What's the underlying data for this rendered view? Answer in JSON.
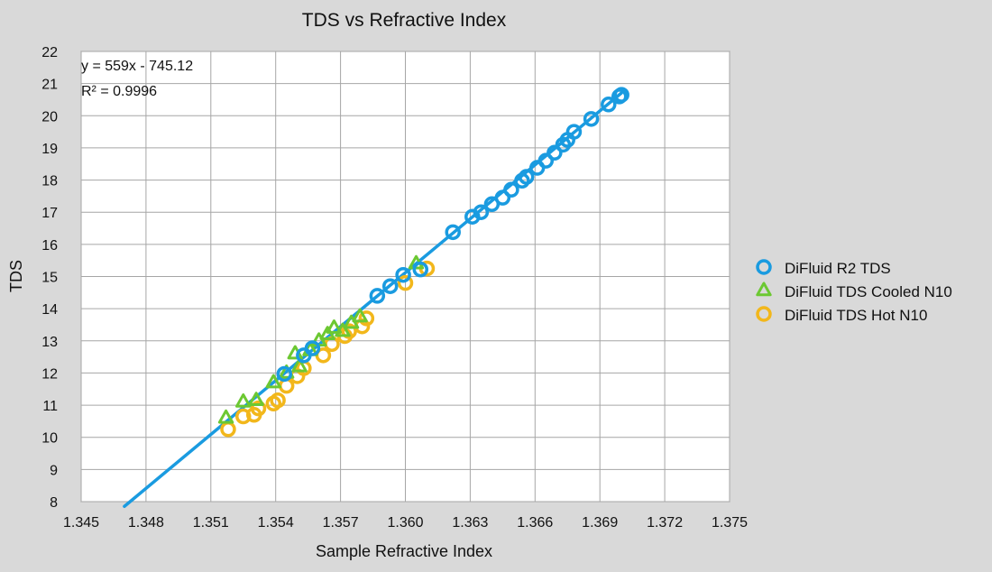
{
  "chart_data": {
    "type": "scatter",
    "title": "TDS vs Refractive Index",
    "xlabel": "Sample Refractive Index",
    "ylabel": "TDS",
    "xlim": [
      1.345,
      1.375
    ],
    "ylim": [
      8,
      22
    ],
    "x_ticks": [
      1.345,
      1.348,
      1.351,
      1.354,
      1.357,
      1.36,
      1.363,
      1.366,
      1.369,
      1.372,
      1.375
    ],
    "x_tick_labels": [
      "1.345",
      "1.348",
      "1.351",
      "1.354",
      "1.357",
      "1.360",
      "1.363",
      "1.366",
      "1.369",
      "1.372",
      "1.375"
    ],
    "y_ticks": [
      8,
      9,
      10,
      11,
      12,
      13,
      14,
      15,
      16,
      17,
      18,
      19,
      20,
      21,
      22
    ],
    "y_tick_labels": [
      "8",
      "9",
      "10",
      "11",
      "12",
      "13",
      "14",
      "15",
      "16",
      "17",
      "18",
      "19",
      "20",
      "21",
      "22"
    ],
    "grid": true,
    "legend_position": "right",
    "trendline": {
      "equation": "y = 559x - 745.12",
      "r_squared": "R² = 0.9996",
      "slope": 559,
      "intercept": -745.12,
      "x_range": [
        1.347,
        1.37
      ],
      "color": "#1a9be0"
    },
    "series": [
      {
        "name": "DiFluid R2 TDS",
        "marker": "circle",
        "color": "#1a9be0",
        "x": [
          1.3544,
          1.3553,
          1.3557,
          1.3587,
          1.3593,
          1.3599,
          1.3607,
          1.3622,
          1.3631,
          1.3635,
          1.364,
          1.3645,
          1.3649,
          1.3654,
          1.3656,
          1.3661,
          1.3665,
          1.3669,
          1.3673,
          1.3675,
          1.3678,
          1.3686,
          1.3694,
          1.3699,
          1.37
        ],
        "y": [
          11.97,
          12.55,
          12.77,
          14.4,
          14.7,
          15.05,
          15.22,
          16.38,
          16.86,
          17.0,
          17.25,
          17.45,
          17.7,
          17.98,
          18.1,
          18.38,
          18.6,
          18.85,
          19.1,
          19.25,
          19.5,
          19.9,
          20.35,
          20.6,
          20.65
        ]
      },
      {
        "name": "DiFluid TDS Cooled N10",
        "marker": "triangle",
        "color": "#6cc832",
        "x": [
          1.3517,
          1.3525,
          1.3531,
          1.3539,
          1.3545,
          1.3549,
          1.3551,
          1.3556,
          1.356,
          1.3564,
          1.3567,
          1.3571,
          1.3575,
          1.3579,
          1.3605
        ],
        "y": [
          10.6,
          11.1,
          11.15,
          11.7,
          12.0,
          12.6,
          12.2,
          12.7,
          13.0,
          13.2,
          13.4,
          13.3,
          13.55,
          13.75,
          15.4
        ]
      },
      {
        "name": "DiFluid TDS Hot N10",
        "marker": "circle",
        "color": "#f2b71b",
        "x": [
          1.3518,
          1.3525,
          1.353,
          1.3532,
          1.3539,
          1.3541,
          1.3545,
          1.355,
          1.3553,
          1.3562,
          1.3566,
          1.3572,
          1.3574,
          1.358,
          1.3582,
          1.36,
          1.361
        ],
        "y": [
          10.25,
          10.65,
          10.7,
          10.9,
          11.05,
          11.15,
          11.6,
          11.9,
          12.15,
          12.55,
          12.9,
          13.15,
          13.3,
          13.45,
          13.7,
          14.8,
          15.25
        ]
      }
    ]
  }
}
